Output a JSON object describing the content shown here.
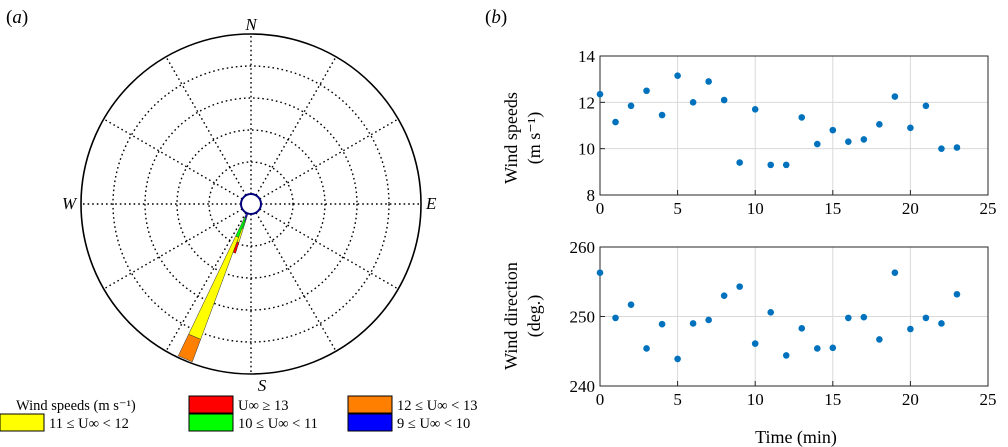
{
  "chart_data": [
    {
      "panel_label": "(a)",
      "type": "wind-rose",
      "compass": {
        "n": "N",
        "s": "S",
        "e": "E",
        "w": "W"
      },
      "rings": 5,
      "spokes_deg": 30,
      "legend": {
        "title": "Wind speeds (m s⁻¹)",
        "entries": [
          {
            "key": "ge13",
            "label": "U∞ ≥ 13",
            "color": "#ff0000"
          },
          {
            "key": "12to13",
            "label": "12 ≤ U∞ < 13",
            "color": "#ff8000"
          },
          {
            "key": "11to12",
            "label": "11 ≤ U∞ < 12",
            "color": "#ffff00"
          },
          {
            "key": "10to11",
            "label": "10 ≤ U∞ < 11",
            "color": "#00ff00"
          },
          {
            "key": "9to10",
            "label": "9 ≤ U∞ < 10",
            "color": "#0000ff"
          }
        ]
      },
      "petals": [
        {
          "direction_deg": 200,
          "stack": [
            {
              "key": "9to10",
              "value": 0.25
            },
            {
              "key": "10to11",
              "value": 0.25
            },
            {
              "key": "11to12",
              "value": 0.45
            },
            {
              "key": "ge13",
              "value": 0.35
            }
          ]
        },
        {
          "direction_deg": 203,
          "stack": [
            {
              "key": "9to10",
              "value": 0.15
            },
            {
              "key": "10to11",
              "value": 0.65
            },
            {
              "key": "11to12",
              "value": 3.4
            },
            {
              "key": "12to13",
              "value": 0.75
            }
          ]
        }
      ],
      "r_max": 5
    },
    {
      "panel_label": "(b)",
      "type": "scatter",
      "ylabel_line1": "Wind speeds",
      "ylabel_line2": "(m s⁻¹)",
      "xlim": [
        0,
        25
      ],
      "ylim": [
        8,
        14
      ],
      "xticks": [
        0,
        5,
        10,
        15,
        20,
        25
      ],
      "yticks": [
        8,
        10,
        12,
        14
      ],
      "grid": true,
      "color": "#0072bd",
      "x": [
        0,
        1,
        2,
        3,
        4,
        5,
        6,
        7,
        8,
        9,
        10,
        11,
        12,
        13,
        14,
        15,
        16,
        17,
        18,
        19,
        20,
        21,
        22,
        23
      ],
      "y": [
        12.35,
        11.15,
        11.85,
        12.5,
        11.45,
        13.15,
        12.0,
        12.9,
        12.1,
        9.4,
        11.7,
        9.3,
        9.3,
        11.35,
        10.2,
        10.8,
        10.3,
        10.4,
        11.05,
        12.25,
        10.9,
        11.85,
        10.0,
        10.05
      ]
    },
    {
      "type": "scatter",
      "xlabel": "Time (min)",
      "ylabel_line1": "Wind direction",
      "ylabel_line2": "(deg.)",
      "xlim": [
        0,
        25
      ],
      "ylim": [
        240,
        260
      ],
      "xticks": [
        0,
        5,
        10,
        15,
        20,
        25
      ],
      "yticks": [
        240,
        250,
        260
      ],
      "grid": true,
      "color": "#0072bd",
      "x": [
        0,
        1,
        2,
        3,
        4,
        5,
        6,
        7,
        8,
        9,
        10,
        11,
        12,
        13,
        14,
        15,
        16,
        17,
        18,
        19,
        20,
        21,
        22,
        23
      ],
      "y": [
        256.3,
        249.8,
        251.7,
        245.4,
        248.9,
        243.9,
        249.0,
        249.5,
        253.0,
        254.3,
        246.1,
        250.6,
        244.4,
        248.3,
        245.4,
        245.5,
        249.8,
        249.9,
        246.7,
        256.3,
        248.2,
        249.8,
        249.0,
        253.2
      ]
    }
  ]
}
